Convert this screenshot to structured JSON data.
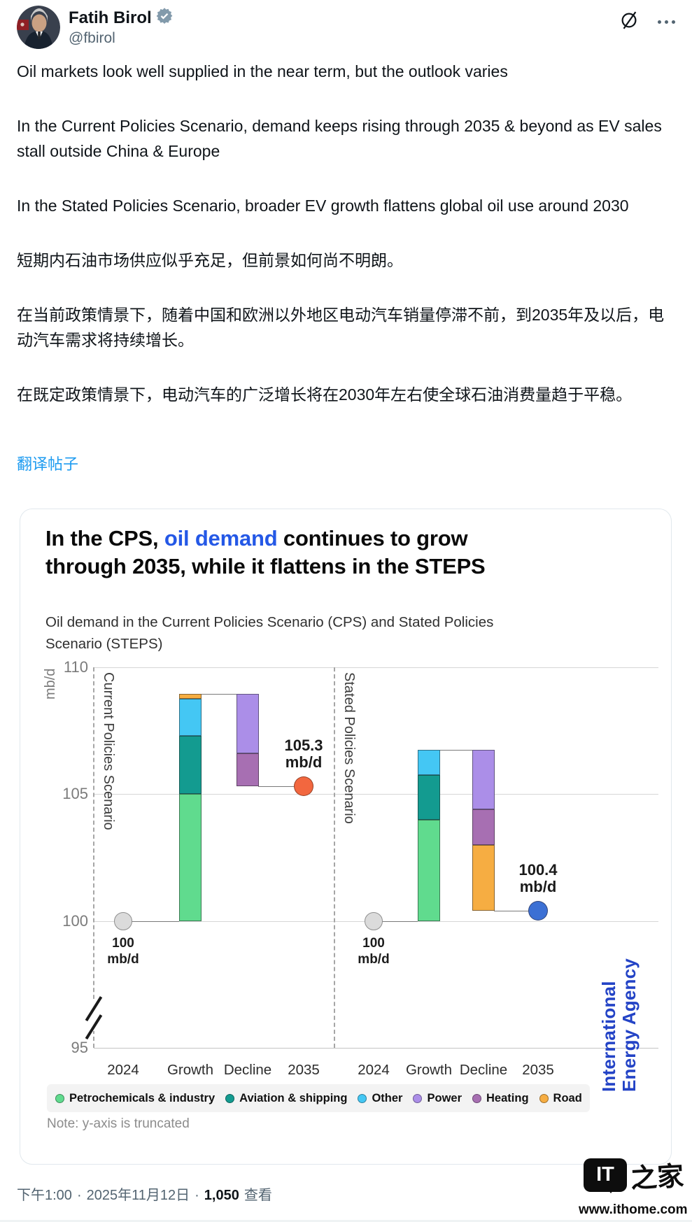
{
  "header": {
    "name": "Fatih Birol",
    "handle": "@fbirol",
    "verified": "gray-checkmark"
  },
  "post": {
    "paragraphs_en": [
      "Oil markets look well supplied in the near term, but the outlook varies",
      "In the Current Policies Scenario, demand keeps rising through 2035 & beyond as EV sales stall outside China & Europe",
      "In the Stated Policies Scenario, broader EV growth flattens global oil use around 2030"
    ],
    "paragraphs_zh": [
      "短期内石油市场供应似乎充足，但前景如何尚不明朗。",
      "在当前政策情景下，随着中国和欧洲以外地区电动汽车销量停滞不前，到2035年及以后，电动汽车需求将持续增长。",
      "在既定政策情景下，电动汽车的广泛增长将在2030年左右使全球石油消费量趋于平稳。"
    ],
    "translate_link": "翻译帖子"
  },
  "card": {
    "title_pre": "In the CPS, ",
    "title_highlight": "oil demand",
    "title_post": " continues to grow through 2035, while it flattens in the STEPS",
    "subtitle": "Oil demand in the Current Policies Scenario (CPS) and Stated Policies Scenario (STEPS)",
    "iea_line1": "International",
    "iea_line2": "Energy Agency"
  },
  "chart_data": {
    "type": "waterfall_stacked_bar",
    "title": "In the CPS, oil demand continues to grow through 2035, while it flattens in the STEPS",
    "subtitle": "Oil demand in the Current Policies Scenario (CPS) and Stated Policies Scenario (STEPS)",
    "unit": "mb/d",
    "ylim": [
      95,
      110
    ],
    "yticks": [
      110,
      105,
      100,
      95
    ],
    "y_axis_truncated": true,
    "x_categories": [
      "2024",
      "Growth",
      "Decline",
      "2035"
    ],
    "legend": [
      {
        "label": "Petrochemicals & industry",
        "color": "#60DB8E"
      },
      {
        "label": "Aviation & shipping",
        "color": "#139B90"
      },
      {
        "label": "Other",
        "color": "#44C7F4"
      },
      {
        "label": "Power",
        "color": "#AB8EE8"
      },
      {
        "label": "Heating",
        "color": "#A76FB2"
      },
      {
        "label": "Road",
        "color": "#F6AD42"
      }
    ],
    "start_dot_color": "#DBDBDB",
    "panels": [
      {
        "label": "Current Policies Scenario",
        "start": {
          "value": 100,
          "label": "100",
          "unit": "mb/d"
        },
        "growth": [
          {
            "sector": "Petrochemicals & industry",
            "from": 100.0,
            "to": 105.0
          },
          {
            "sector": "Aviation & shipping",
            "from": 105.0,
            "to": 107.3
          },
          {
            "sector": "Other",
            "from": 107.3,
            "to": 108.75
          },
          {
            "sector": "Road",
            "from": 108.75,
            "to": 108.95
          }
        ],
        "decline": [
          {
            "sector": "Power",
            "from": 108.95,
            "to": 106.6
          },
          {
            "sector": "Heating",
            "from": 106.6,
            "to": 105.3
          }
        ],
        "end": {
          "value": 105.3,
          "label": "105.3",
          "unit": "mb/d",
          "dot_color": "#F2673F"
        }
      },
      {
        "label": "Stated Policies Scenario",
        "start": {
          "value": 100,
          "label": "100",
          "unit": "mb/d"
        },
        "growth": [
          {
            "sector": "Petrochemicals & industry",
            "from": 100.0,
            "to": 104.0
          },
          {
            "sector": "Aviation & shipping",
            "from": 104.0,
            "to": 105.75
          },
          {
            "sector": "Other",
            "from": 105.75,
            "to": 106.75
          }
        ],
        "decline": [
          {
            "sector": "Power",
            "from": 106.75,
            "to": 104.4
          },
          {
            "sector": "Heating",
            "from": 104.4,
            "to": 103.0
          },
          {
            "sector": "Road",
            "from": 103.0,
            "to": 100.4
          }
        ],
        "end": {
          "value": 100.4,
          "label": "100.4",
          "unit": "mb/d",
          "dot_color": "#3C70D4"
        }
      }
    ],
    "note": "Note: y-axis is truncated",
    "source": "International Energy Agency"
  },
  "footer": {
    "time": "下午1:00",
    "date": "2025年11月12日",
    "sep": "·",
    "views": "1,050",
    "views_label": "查看"
  },
  "watermark": {
    "logo_text": "IT",
    "brand": "之家",
    "url": "www.ithome.com"
  },
  "colors": {
    "link_blue": "#1d9bf0",
    "title_highlight_blue": "#2458e6",
    "iea_blue": "#2343c6",
    "verified_gray": "#829aab",
    "cps_end_dot": "#F2673F",
    "steps_end_dot": "#3C70D4"
  }
}
